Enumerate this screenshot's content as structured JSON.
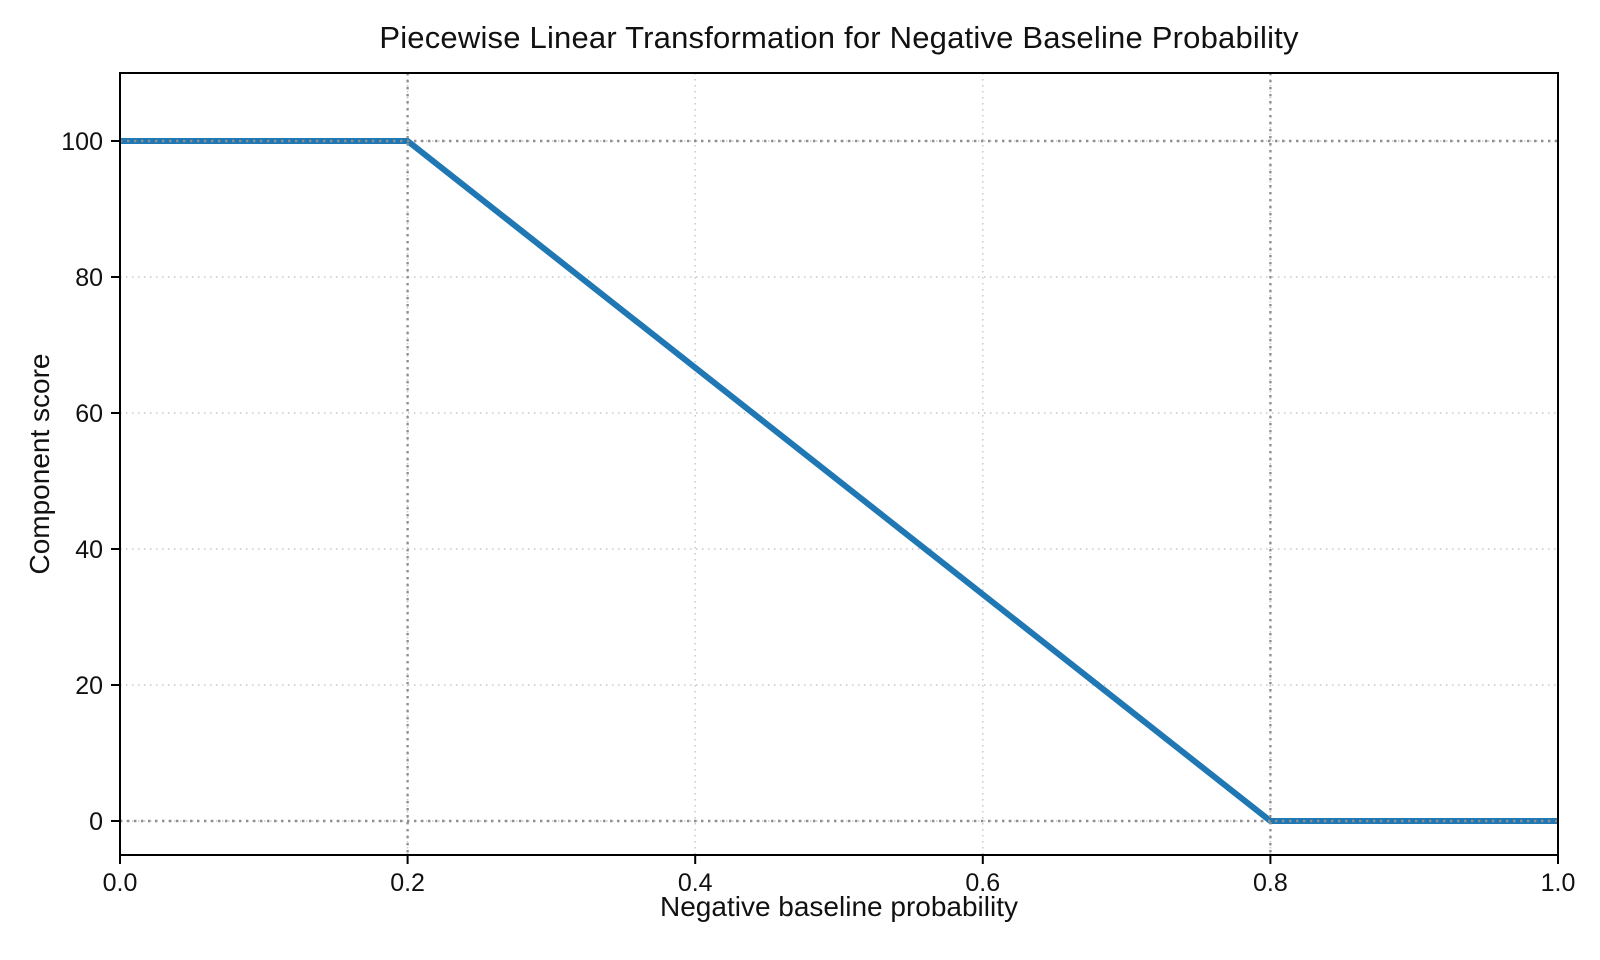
{
  "chart_data": {
    "type": "line",
    "title": "Piecewise Linear Transformation for Negative Baseline Probability",
    "xlabel": "Negative baseline probability",
    "ylabel": "Component score",
    "series": [
      {
        "name": "component-score-curve",
        "x": [
          0.0,
          0.2,
          0.8,
          1.0
        ],
        "y": [
          100,
          100,
          0,
          0
        ],
        "color": "#1f77b4",
        "line_width": 6
      }
    ],
    "xlim": [
      0.0,
      1.0
    ],
    "ylim": [
      -5,
      110
    ],
    "xticks": {
      "values": [
        0.0,
        0.2,
        0.4,
        0.6,
        0.8,
        1.0
      ],
      "labels": [
        "0.0",
        "0.2",
        "0.4",
        "0.6",
        "0.8",
        "1.0"
      ]
    },
    "yticks": {
      "values": [
        0,
        20,
        40,
        60,
        80,
        100
      ],
      "labels": [
        "0",
        "20",
        "40",
        "60",
        "80",
        "100"
      ]
    },
    "grid": {
      "on": true,
      "style": "dotted",
      "color": "#c9c9c9"
    },
    "reference_lines": {
      "vertical_x": [
        0.2,
        0.8
      ],
      "horizontal_y": [
        0,
        100
      ],
      "style": "dotted",
      "color": "#8f8f8f"
    },
    "legend": {
      "visible": false
    },
    "colors": {
      "axis": "#000000",
      "text": "#111111",
      "background": "#ffffff",
      "accent": "#1f77b4"
    }
  }
}
